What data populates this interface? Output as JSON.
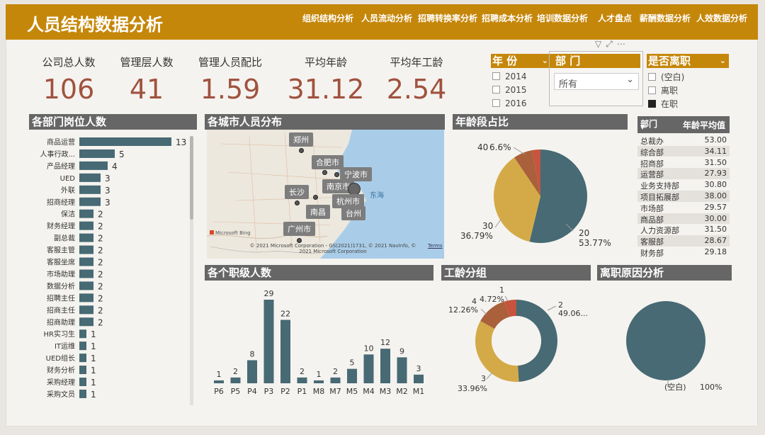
{
  "header": {
    "title": "人员结构数据分析",
    "nav": [
      "组织结构分析",
      "人员流动分析",
      "招聘转换率分析",
      "招聘成本分析",
      "培训数据分析",
      "人才盘点",
      "薪酬数据分析",
      "人效数据分析"
    ]
  },
  "kpis": [
    {
      "label": "公司总人数",
      "value": "106"
    },
    {
      "label": "管理层人数",
      "value": "41"
    },
    {
      "label": "管理人员配比",
      "value": "1.59"
    },
    {
      "label": "平均年龄",
      "value": "31.12"
    },
    {
      "label": "平均年工龄",
      "value": "2.54"
    }
  ],
  "slicers": {
    "year": {
      "title": "年 份",
      "options": [
        "2014",
        "2015",
        "2016"
      ]
    },
    "dept": {
      "title": "部 门",
      "value": "所有"
    },
    "resign": {
      "title": "是否离职",
      "options": [
        {
          "label": "(空白)",
          "checked": false
        },
        {
          "label": "离职",
          "checked": false
        },
        {
          "label": "在职",
          "checked": true
        }
      ]
    }
  },
  "sections": {
    "dept_positions": "各部门岗位人数",
    "city_map": "各城市人员分布",
    "age_share": "年龄段占比",
    "rank_count": "各个职级人数",
    "tenure": "工龄分组",
    "resign_reason": "离职原因分析"
  },
  "dept_age_table": {
    "headers": [
      "部门",
      "年龄平均值"
    ],
    "rows": [
      [
        "总裁办",
        "53.00"
      ],
      [
        "综合部",
        "34.11"
      ],
      [
        "招商部",
        "31.50"
      ],
      [
        "运营部",
        "27.93"
      ],
      [
        "业务支持部",
        "30.80"
      ],
      [
        "项目拓展部",
        "38.00"
      ],
      [
        "市场部",
        "29.57"
      ],
      [
        "商品部",
        "30.00"
      ],
      [
        "人力资源部",
        "31.50"
      ],
      [
        "客服部",
        "28.67"
      ],
      [
        "财务部",
        "29.18"
      ]
    ]
  },
  "map": {
    "cities": [
      "郑州",
      "合肥市",
      "宁波市",
      "南京市",
      "长沙",
      "杭州市",
      "南昌",
      "台州",
      "广州市"
    ],
    "sea": "东海",
    "logo": "Microsoft Bing",
    "copyright": "© 2021 Microsoft Corporation - GS(2021)1731, © 2021 NavInfo, © 2021 Microsoft Corporation",
    "terms": "Terms"
  },
  "chart_data": [
    {
      "type": "bar",
      "orientation": "horizontal",
      "title": "各部门岗位人数",
      "categories": [
        "商品运营",
        "人事行政...",
        "产品经理",
        "UED",
        "外联",
        "招商经理",
        "保洁",
        "财务经理",
        "副总裁",
        "客服主管",
        "客服坐席",
        "市场助理",
        "数据分析",
        "招聘主任",
        "招商主任",
        "招商助理",
        "HR实习生",
        "IT运维",
        "UED组长",
        "财务分析",
        "采购经理",
        "采购文员"
      ],
      "values": [
        13,
        5,
        4,
        3,
        3,
        3,
        2,
        2,
        2,
        2,
        2,
        2,
        2,
        2,
        2,
        2,
        1,
        1,
        1,
        1,
        1,
        1
      ]
    },
    {
      "type": "pie",
      "title": "年龄段占比",
      "slices": [
        {
          "label": "20",
          "value": 53.77,
          "display": "53.77%",
          "color": "#476a74"
        },
        {
          "label": "30",
          "value": 36.79,
          "display": "36.79%",
          "color": "#d4aa48"
        },
        {
          "label": "40",
          "value": 6.6,
          "display": "6.6%",
          "color": "#a9603b"
        },
        {
          "label": "",
          "value": 2.84,
          "display": "",
          "color": "#c6543e"
        }
      ]
    },
    {
      "type": "bar",
      "title": "各个职级人数",
      "categories": [
        "P6",
        "P5",
        "P4",
        "P3",
        "P2",
        "P1",
        "M8",
        "M7",
        "M5",
        "M4",
        "M3",
        "M2",
        "M1"
      ],
      "values": [
        1,
        2,
        8,
        29,
        22,
        2,
        1,
        2,
        5,
        10,
        12,
        9,
        3
      ]
    },
    {
      "type": "pie",
      "donut": true,
      "title": "工龄分组",
      "slices": [
        {
          "label": "2",
          "value": 49.06,
          "display": "49.06...",
          "color": "#476a74"
        },
        {
          "label": "3",
          "value": 33.96,
          "display": "33.96%",
          "color": "#d4aa48"
        },
        {
          "label": "4",
          "value": 12.26,
          "display": "12.26%",
          "color": "#a9603b"
        },
        {
          "label": "1",
          "value": 4.72,
          "display": "4.72%",
          "color": "#c6543e"
        }
      ]
    },
    {
      "type": "pie",
      "title": "离职原因分析",
      "slices": [
        {
          "label": "(空白)",
          "value": 100,
          "display": "100%",
          "color": "#476a74"
        }
      ]
    }
  ]
}
